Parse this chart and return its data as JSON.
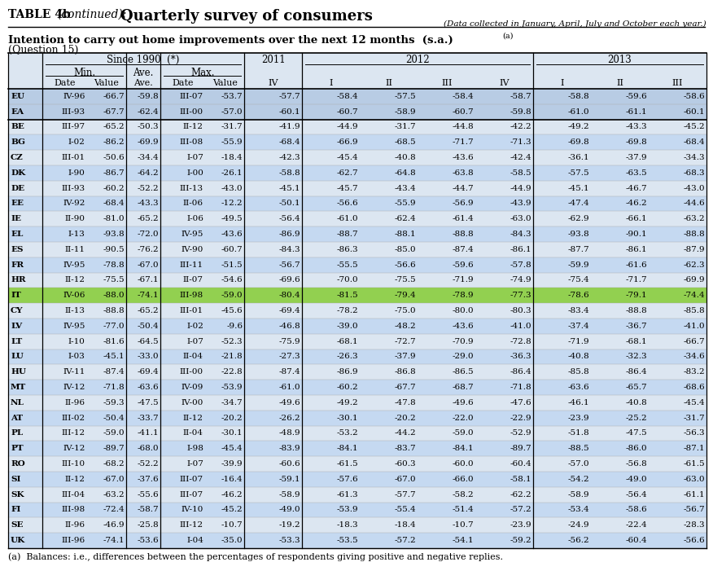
{
  "title_prefix": "TABLE 4b",
  "title_italic": " (continued): ",
  "title_main": "Quarterly survey of consumers",
  "subtitle_italic": "(Data collected in January, April, July and October each year.)",
  "section_title": "Intention to carry out home improvements over the next 12 months  (s.a.)",
  "section_sup": "(a)",
  "question": "(Question 15)",
  "highlighted_row": "IT",
  "bold_rows": [
    "EU",
    "EA",
    "BE",
    "BG",
    "CZ",
    "DK",
    "DE",
    "EE",
    "IE",
    "EL",
    "ES",
    "FR",
    "HR",
    "IT",
    "CY",
    "LV",
    "LT",
    "LU",
    "HU",
    "MT",
    "NL",
    "AT",
    "PL",
    "PT",
    "RO",
    "SI",
    "SK",
    "FI",
    "SE",
    "UK"
  ],
  "rows": [
    [
      "EU",
      "IV-96",
      "-66.7",
      "-59.8",
      "III-07",
      "-53.7",
      "-57.7",
      "-58.4",
      "-57.5",
      "-58.4",
      "-58.7",
      "-58.8",
      "-59.6",
      "-58.6"
    ],
    [
      "EA",
      "III-93",
      "-67.7",
      "-62.4",
      "III-00",
      "-57.0",
      "-60.1",
      "-60.7",
      "-58.9",
      "-60.7",
      "-59.8",
      "-61.0",
      "-61.1",
      "-60.1"
    ],
    [
      "BE",
      "III-97",
      "-65.2",
      "-50.3",
      "II-12",
      "-31.7",
      "-41.9",
      "-44.9",
      "-31.7",
      "-44.8",
      "-42.2",
      "-49.2",
      "-43.3",
      "-45.2"
    ],
    [
      "BG",
      "I-02",
      "-86.2",
      "-69.9",
      "III-08",
      "-55.9",
      "-68.4",
      "-66.9",
      "-68.5",
      "-71.7",
      "-71.3",
      "-69.8",
      "-69.8",
      "-68.4"
    ],
    [
      "CZ",
      "III-01",
      "-50.6",
      "-34.4",
      "I-07",
      "-18.4",
      "-42.3",
      "-45.4",
      "-40.8",
      "-43.6",
      "-42.4",
      "-36.1",
      "-37.9",
      "-34.3"
    ],
    [
      "DK",
      "I-90",
      "-86.7",
      "-64.2",
      "I-00",
      "-26.1",
      "-58.8",
      "-62.7",
      "-64.8",
      "-63.8",
      "-58.5",
      "-57.5",
      "-63.5",
      "-68.3"
    ],
    [
      "DE",
      "III-93",
      "-60.2",
      "-52.2",
      "III-13",
      "-43.0",
      "-45.1",
      "-45.7",
      "-43.4",
      "-44.7",
      "-44.9",
      "-45.1",
      "-46.7",
      "-43.0"
    ],
    [
      "EE",
      "IV-92",
      "-68.4",
      "-43.3",
      "II-06",
      "-12.2",
      "-50.1",
      "-56.6",
      "-55.9",
      "-56.9",
      "-43.9",
      "-47.4",
      "-46.2",
      "-44.6"
    ],
    [
      "IE",
      "II-90",
      "-81.0",
      "-65.2",
      "I-06",
      "-49.5",
      "-56.4",
      "-61.0",
      "-62.4",
      "-61.4",
      "-63.0",
      "-62.9",
      "-66.1",
      "-63.2"
    ],
    [
      "EL",
      "I-13",
      "-93.8",
      "-72.0",
      "IV-95",
      "-43.6",
      "-86.9",
      "-88.7",
      "-88.1",
      "-88.8",
      "-84.3",
      "-93.8",
      "-90.1",
      "-88.8"
    ],
    [
      "ES",
      "II-11",
      "-90.5",
      "-76.2",
      "IV-90",
      "-60.7",
      "-84.3",
      "-86.3",
      "-85.0",
      "-87.4",
      "-86.1",
      "-87.7",
      "-86.1",
      "-87.9"
    ],
    [
      "FR",
      "IV-95",
      "-78.8",
      "-67.0",
      "III-11",
      "-51.5",
      "-56.7",
      "-55.5",
      "-56.6",
      "-59.6",
      "-57.8",
      "-59.9",
      "-61.6",
      "-62.3"
    ],
    [
      "HR",
      "II-12",
      "-75.5",
      "-67.1",
      "II-07",
      "-54.6",
      "-69.6",
      "-70.0",
      "-75.5",
      "-71.9",
      "-74.9",
      "-75.4",
      "-71.7",
      "-69.9"
    ],
    [
      "IT",
      "IV-06",
      "-88.0",
      "-74.1",
      "III-98",
      "-59.0",
      "-80.4",
      "-81.5",
      "-79.4",
      "-78.9",
      "-77.3",
      "-78.6",
      "-79.1",
      "-74.4"
    ],
    [
      "CY",
      "II-13",
      "-88.8",
      "-65.2",
      "III-01",
      "-45.6",
      "-69.4",
      "-78.2",
      "-75.0",
      "-80.0",
      "-80.3",
      "-83.4",
      "-88.8",
      "-85.8"
    ],
    [
      "LV",
      "IV-95",
      "-77.0",
      "-50.4",
      "I-02",
      "-9.6",
      "-46.8",
      "-39.0",
      "-48.2",
      "-43.6",
      "-41.0",
      "-37.4",
      "-36.7",
      "-41.0"
    ],
    [
      "LT",
      "I-10",
      "-81.6",
      "-64.5",
      "I-07",
      "-52.3",
      "-75.9",
      "-68.1",
      "-72.7",
      "-70.9",
      "-72.8",
      "-71.9",
      "-68.1",
      "-66.7"
    ],
    [
      "LU",
      "I-03",
      "-45.1",
      "-33.0",
      "II-04",
      "-21.8",
      "-27.3",
      "-26.3",
      "-37.9",
      "-29.0",
      "-36.3",
      "-40.8",
      "-32.3",
      "-34.6"
    ],
    [
      "HU",
      "IV-11",
      "-87.4",
      "-69.4",
      "III-00",
      "-22.8",
      "-87.4",
      "-86.9",
      "-86.8",
      "-86.5",
      "-86.4",
      "-85.8",
      "-86.4",
      "-83.2"
    ],
    [
      "MT",
      "IV-12",
      "-71.8",
      "-63.6",
      "IV-09",
      "-53.9",
      "-61.0",
      "-60.2",
      "-67.7",
      "-68.7",
      "-71.8",
      "-63.6",
      "-65.7",
      "-68.6"
    ],
    [
      "NL",
      "II-96",
      "-59.3",
      "-47.5",
      "IV-00",
      "-34.7",
      "-49.6",
      "-49.2",
      "-47.8",
      "-49.6",
      "-47.6",
      "-46.1",
      "-40.8",
      "-45.4"
    ],
    [
      "AT",
      "III-02",
      "-50.4",
      "-33.7",
      "II-12",
      "-20.2",
      "-26.2",
      "-30.1",
      "-20.2",
      "-22.0",
      "-22.9",
      "-23.9",
      "-25.2",
      "-31.7"
    ],
    [
      "PL",
      "III-12",
      "-59.0",
      "-41.1",
      "II-04",
      "-30.1",
      "-48.9",
      "-53.2",
      "-44.2",
      "-59.0",
      "-52.9",
      "-51.8",
      "-47.5",
      "-56.3"
    ],
    [
      "PT",
      "IV-12",
      "-89.7",
      "-68.0",
      "I-98",
      "-45.4",
      "-83.9",
      "-84.1",
      "-83.7",
      "-84.1",
      "-89.7",
      "-88.5",
      "-86.0",
      "-87.1"
    ],
    [
      "RO",
      "III-10",
      "-68.2",
      "-52.2",
      "I-07",
      "-39.9",
      "-60.6",
      "-61.5",
      "-60.3",
      "-60.0",
      "-60.4",
      "-57.0",
      "-56.8",
      "-61.5"
    ],
    [
      "SI",
      "II-12",
      "-67.0",
      "-37.6",
      "III-07",
      "-16.4",
      "-59.1",
      "-57.6",
      "-67.0",
      "-66.0",
      "-58.1",
      "-54.2",
      "-49.0",
      "-63.0"
    ],
    [
      "SK",
      "III-04",
      "-63.2",
      "-55.6",
      "III-07",
      "-46.2",
      "-58.9",
      "-61.3",
      "-57.7",
      "-58.2",
      "-62.2",
      "-58.9",
      "-56.4",
      "-61.1"
    ],
    [
      "FI",
      "III-98",
      "-72.4",
      "-58.7",
      "IV-10",
      "-45.2",
      "-49.0",
      "-53.9",
      "-55.4",
      "-51.4",
      "-57.2",
      "-53.4",
      "-58.6",
      "-56.7"
    ],
    [
      "SE",
      "II-96",
      "-46.9",
      "-25.8",
      "III-12",
      "-10.7",
      "-19.2",
      "-18.3",
      "-18.4",
      "-10.7",
      "-23.9",
      "-24.9",
      "-22.4",
      "-28.3"
    ],
    [
      "UK",
      "III-96",
      "-74.1",
      "-53.6",
      "I-04",
      "-35.0",
      "-53.3",
      "-53.5",
      "-57.2",
      "-54.1",
      "-59.2",
      "-56.2",
      "-60.4",
      "-56.6"
    ]
  ],
  "footnote": "(a)  Balances: i.e., differences between the percentages of respondents giving positive and negative replies.",
  "highlight_color": "#92D050",
  "row_bg_colors": [
    "#DAEEF3",
    "#DAEEF3",
    "#DCE6F1",
    "#DCE6F1",
    "#DCE6F1",
    "#DCE6F1",
    "#DCE6F1",
    "#DCE6F1",
    "#DCE6F1",
    "#DCE6F1",
    "#DCE6F1",
    "#DCE6F1",
    "#DCE6F1",
    "#DCE6F1",
    "#DCE6F1",
    "#DCE6F1",
    "#DCE6F1",
    "#DCE6F1",
    "#DCE6F1",
    "#DCE6F1",
    "#DCE6F1",
    "#DCE6F1",
    "#DCE6F1",
    "#DCE6F1",
    "#DCE6F1",
    "#DCE6F1",
    "#DCE6F1",
    "#DCE6F1",
    "#DCE6F1",
    "#DCE6F1"
  ],
  "header_bg": "#DCE6F1"
}
